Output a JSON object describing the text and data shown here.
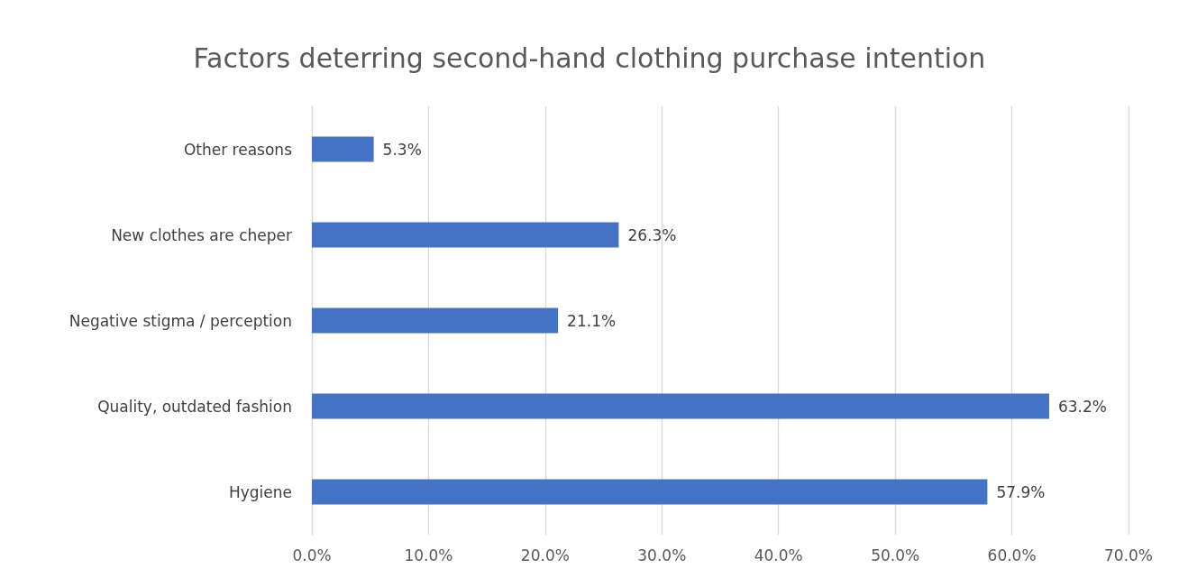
{
  "chart_data": {
    "type": "bar",
    "orientation": "horizontal",
    "title": "Factors deterring second-hand clothing purchase intention",
    "categories": [
      "Other reasons",
      "New clothes are cheper",
      "Negative stigma / perception",
      "Quality, outdated fashion",
      "Hygiene"
    ],
    "values": [
      5.3,
      26.3,
      21.1,
      63.2,
      57.9
    ],
    "value_labels": [
      "5.3%",
      "26.3%",
      "21.1%",
      "63.2%",
      "57.9%"
    ],
    "color": "#4472c4",
    "xlim": [
      0,
      70
    ],
    "xticks": [
      {
        "value": 0,
        "label": "0.0%"
      },
      {
        "value": 10,
        "label": "10.0%"
      },
      {
        "value": 20,
        "label": "20.0%"
      },
      {
        "value": 30,
        "label": "30.0%"
      },
      {
        "value": 40,
        "label": "40.0%"
      },
      {
        "value": 50,
        "label": "50.0%"
      },
      {
        "value": 60,
        "label": "60.0%"
      },
      {
        "value": 70,
        "label": "70.0%"
      }
    ],
    "grid": "x"
  }
}
